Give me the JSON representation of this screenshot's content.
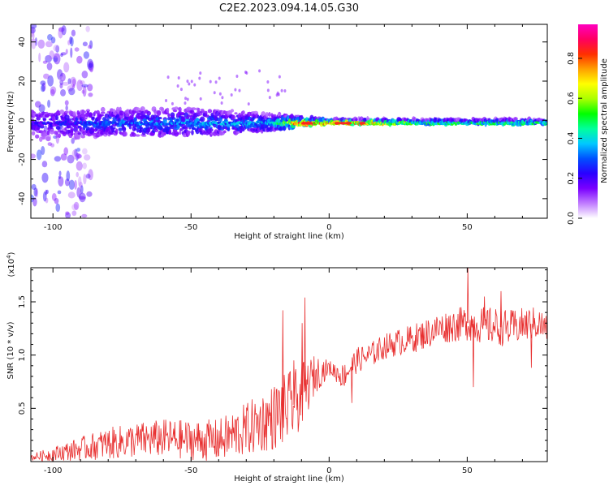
{
  "figure_title": "C2E2.2023.094.14.05.G30",
  "chart_data": [
    {
      "type": "heatmap",
      "xlabel": "Height of straight line (km)",
      "ylabel": "Frequency (Hz)",
      "xlim": [
        -108,
        79
      ],
      "ylim": [
        -50,
        49
      ],
      "x_ticks": [
        -100,
        -50,
        0,
        50
      ],
      "x_tick_labels": [
        "-100",
        "-50",
        "0",
        "50"
      ],
      "y_ticks": [
        -40,
        -20,
        0,
        20,
        40
      ],
      "y_tick_labels": [
        "-40",
        "-20",
        "0",
        "20",
        "40"
      ],
      "colorbar": {
        "label": "Normalized spectral amplitude",
        "range": [
          0,
          0.97
        ],
        "ticks": [
          0.0,
          0.2,
          0.4,
          0.6,
          0.8
        ],
        "tick_labels": [
          "0.0",
          "0.2",
          "0.4",
          "0.6",
          "0.8"
        ],
        "colormap": [
          "#ffffff",
          "#c07cff",
          "#7a00ff",
          "#2a00ff",
          "#0050ff",
          "#00c8ff",
          "#00ff9c",
          "#00ff00",
          "#aaff00",
          "#ffff00",
          "#ffa000",
          "#ff3000",
          "#ff0060",
          "#ff00c0"
        ]
      },
      "band": {
        "center_hz": -1.5,
        "lower_spread_hz": [
          [
            -100,
            -14
          ],
          [
            -80,
            -8
          ],
          [
            -50,
            -8
          ],
          [
            -20,
            -5
          ],
          [
            -10,
            -3
          ],
          [
            0,
            -2
          ],
          [
            80,
            -2
          ]
        ],
        "upper_spread_hz": [
          [
            -100,
            4
          ],
          [
            -80,
            6
          ],
          [
            -50,
            7
          ],
          [
            -20,
            4
          ],
          [
            -10,
            3
          ],
          [
            0,
            2
          ],
          [
            80,
            2
          ]
        ],
        "peak_amplitude": [
          [
            -100,
            0.25
          ],
          [
            -80,
            0.35
          ],
          [
            -50,
            0.38
          ],
          [
            -20,
            0.42
          ],
          [
            -10,
            0.9
          ],
          [
            0,
            0.85
          ],
          [
            10,
            0.8
          ],
          [
            30,
            0.55
          ],
          [
            80,
            0.5
          ]
        ]
      }
    },
    {
      "type": "line",
      "xlabel": "Height of straight line (km)",
      "ylabel": "SNR (10 * v/v)",
      "y_multiplier": "(x10",
      "y_multiplier_exp": "4",
      "y_multiplier_close": ")",
      "xlim": [
        -108,
        79
      ],
      "ylim": [
        0,
        1.82
      ],
      "x_ticks": [
        -100,
        -50,
        0,
        50
      ],
      "x_tick_labels": [
        "-100",
        "-50",
        "0",
        "50"
      ],
      "y_ticks": [
        0.5,
        1.0,
        1.5
      ],
      "y_tick_labels": [
        "0.5",
        "1.0",
        "1.5"
      ],
      "color": "#e83030",
      "trend": [
        [
          -108,
          0.04
        ],
        [
          -100,
          0.07
        ],
        [
          -90,
          0.12
        ],
        [
          -80,
          0.17
        ],
        [
          -70,
          0.2
        ],
        [
          -60,
          0.22
        ],
        [
          -50,
          0.2
        ],
        [
          -40,
          0.2
        ],
        [
          -30,
          0.3
        ],
        [
          -20,
          0.42
        ],
        [
          -15,
          0.5
        ],
        [
          -12,
          0.55
        ],
        [
          -8,
          0.7
        ],
        [
          -5,
          0.82
        ],
        [
          0,
          0.88
        ],
        [
          5,
          0.8
        ],
        [
          10,
          0.95
        ],
        [
          15,
          1.0
        ],
        [
          20,
          1.08
        ],
        [
          25,
          1.12
        ],
        [
          30,
          1.15
        ],
        [
          35,
          1.2
        ],
        [
          40,
          1.25
        ],
        [
          45,
          1.28
        ],
        [
          50,
          1.3
        ],
        [
          55,
          1.28
        ],
        [
          60,
          1.27
        ],
        [
          65,
          1.25
        ],
        [
          70,
          1.28
        ],
        [
          75,
          1.3
        ],
        [
          79,
          1.25
        ]
      ],
      "noise_amplitude": [
        [
          -108,
          0.03
        ],
        [
          -100,
          0.07
        ],
        [
          -80,
          0.15
        ],
        [
          -60,
          0.18
        ],
        [
          -40,
          0.2
        ],
        [
          -25,
          0.28
        ],
        [
          -15,
          0.35
        ],
        [
          -10,
          0.3
        ],
        [
          0,
          0.07
        ],
        [
          5,
          0.12
        ],
        [
          20,
          0.12
        ],
        [
          40,
          0.15
        ],
        [
          60,
          0.18
        ],
        [
          79,
          0.15
        ]
      ],
      "spikes": [
        [
          -17,
          1.42
        ],
        [
          -9,
          1.54
        ],
        [
          -10,
          1.3
        ],
        [
          -13,
          0.95
        ],
        [
          8,
          0.55
        ],
        [
          50,
          1.82
        ],
        [
          52,
          0.7
        ],
        [
          56,
          1.55
        ],
        [
          62,
          1.6
        ],
        [
          73,
          0.88
        ]
      ]
    }
  ]
}
